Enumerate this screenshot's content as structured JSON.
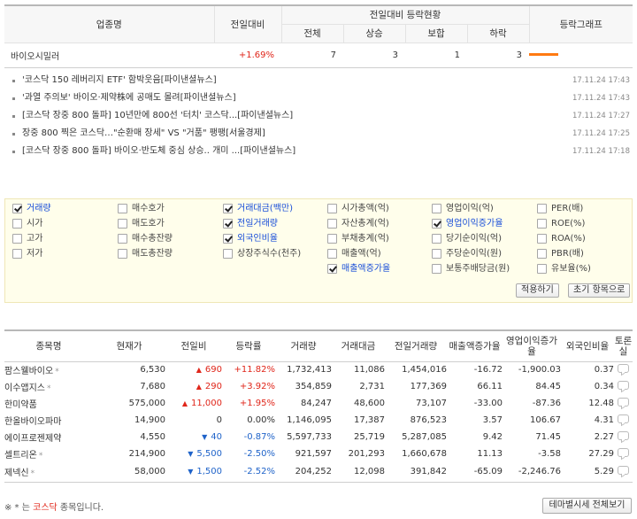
{
  "industry": {
    "headers": {
      "name": "업종명",
      "change": "전일대비",
      "group": "전일대비 등락현황",
      "total": "전체",
      "up": "상승",
      "flat": "보합",
      "down": "하락",
      "graph": "등락그래프"
    },
    "row": {
      "name": "바이오시밀러",
      "change": "+1.69%",
      "total": "7",
      "up": "3",
      "flat": "1",
      "down": "3",
      "graph_up_ratio": 0.43,
      "graph_color": "#ff7a12"
    }
  },
  "news": [
    {
      "title": "'코스닥 150 레버리지 ETF' 함박웃음[파이낸셜뉴스]",
      "date": "17.11.24 17:43"
    },
    {
      "title": "'과열 주의보' 바이오·제약株에 공매도 몰려[파이낸셜뉴스]",
      "date": "17.11.24 17:43"
    },
    {
      "title": "[코스닥 장중 800 돌파] 10년만에 800선 '터치' 코스닥...[파이낸셜뉴스]",
      "date": "17.11.24 17:27"
    },
    {
      "title": "장중 800 찍은 코스닥…\"순환매 장세\" VS \"거품\" 팽팽[서울경제]",
      "date": "17.11.24 17:25"
    },
    {
      "title": "[코스닥 장중 800 돌파] 바이오·반도체 중심 상승.. 개미 ...[파이낸셜뉴스]",
      "date": "17.11.24 17:18"
    }
  ],
  "filters": [
    [
      {
        "label": "거래량",
        "checked": true
      },
      {
        "label": "시가",
        "checked": false
      },
      {
        "label": "고가",
        "checked": false
      },
      {
        "label": "저가",
        "checked": false
      }
    ],
    [
      {
        "label": "매수호가",
        "checked": false
      },
      {
        "label": "매도호가",
        "checked": false
      },
      {
        "label": "매수총잔량",
        "checked": false
      },
      {
        "label": "매도총잔량",
        "checked": false
      }
    ],
    [
      {
        "label": "거래대금(백만)",
        "checked": true
      },
      {
        "label": "전일거래량",
        "checked": true
      },
      {
        "label": "외국인비율",
        "checked": true
      },
      {
        "label": "상장주식수(천주)",
        "checked": false
      }
    ],
    [
      {
        "label": "시가총액(억)",
        "checked": false
      },
      {
        "label": "자산총계(억)",
        "checked": false
      },
      {
        "label": "부채총계(억)",
        "checked": false
      },
      {
        "label": "매출액(억)",
        "checked": false
      },
      {
        "label": "매출액증가율",
        "checked": true
      }
    ],
    [
      {
        "label": "영업이익(억)",
        "checked": false
      },
      {
        "label": "영업이익증가율",
        "checked": true
      },
      {
        "label": "당기순이익(억)",
        "checked": false
      },
      {
        "label": "주당순이익(원)",
        "checked": false
      },
      {
        "label": "보통주배당금(원)",
        "checked": false
      }
    ],
    [
      {
        "label": "PER(배)",
        "checked": false
      },
      {
        "label": "ROE(%)",
        "checked": false
      },
      {
        "label": "ROA(%)",
        "checked": false
      },
      {
        "label": "PBR(배)",
        "checked": false
      },
      {
        "label": "유보율(%)",
        "checked": false
      }
    ]
  ],
  "filter_buttons": {
    "apply": "적용하기",
    "reset": "초기 항목으로"
  },
  "stocks": {
    "headers": [
      "종목명",
      "현재가",
      "전일비",
      "등락률",
      "거래량",
      "거래대금",
      "전일거래량",
      "매출액증가율",
      "영업이익증가율",
      "외국인비율",
      "토론실"
    ],
    "rows": [
      {
        "name": "팜스웰바이오",
        "star": "*",
        "price": "6,530",
        "dir": "up",
        "diff": "690",
        "rate": "+11.82%",
        "volume": "1,732,413",
        "amount": "11,086",
        "prev_volume": "1,454,016",
        "sales_growth": "-16.72",
        "op_growth": "-1,900.03",
        "foreign": "0.37"
      },
      {
        "name": "이수앱지스",
        "star": "*",
        "price": "7,680",
        "dir": "up",
        "diff": "290",
        "rate": "+3.92%",
        "volume": "354,859",
        "amount": "2,731",
        "prev_volume": "177,369",
        "sales_growth": "66.11",
        "op_growth": "84.45",
        "foreign": "0.34"
      },
      {
        "name": "한미약품",
        "star": "",
        "price": "575,000",
        "dir": "up",
        "diff": "11,000",
        "rate": "+1.95%",
        "volume": "84,247",
        "amount": "48,600",
        "prev_volume": "73,107",
        "sales_growth": "-33.00",
        "op_growth": "-87.36",
        "foreign": "12.48"
      },
      {
        "name": "한올바이오파마",
        "star": "",
        "price": "14,900",
        "dir": "flat",
        "diff": "0",
        "rate": "0.00%",
        "volume": "1,146,095",
        "amount": "17,387",
        "prev_volume": "876,523",
        "sales_growth": "3.57",
        "op_growth": "106.67",
        "foreign": "4.31"
      },
      {
        "name": "에이프로젠제약",
        "star": "",
        "price": "4,550",
        "dir": "down",
        "diff": "40",
        "rate": "-0.87%",
        "volume": "5,597,733",
        "amount": "25,719",
        "prev_volume": "5,287,085",
        "sales_growth": "9.42",
        "op_growth": "71.45",
        "foreign": "2.27"
      },
      {
        "name": "셀트리온",
        "star": "*",
        "price": "214,900",
        "dir": "down",
        "diff": "5,500",
        "rate": "-2.50%",
        "volume": "921,597",
        "amount": "201,293",
        "prev_volume": "1,660,678",
        "sales_growth": "11.13",
        "op_growth": "-3.58",
        "foreign": "27.29"
      },
      {
        "name": "제넥신",
        "star": "*",
        "price": "58,000",
        "dir": "down",
        "diff": "1,500",
        "rate": "-2.52%",
        "volume": "204,252",
        "amount": "12,098",
        "prev_volume": "391,842",
        "sales_growth": "-65.09",
        "op_growth": "-2,246.76",
        "foreign": "5.29"
      }
    ]
  },
  "footnote": {
    "prefix": "※ * 는 ",
    "market": "코스닥",
    "suffix": " 종목입니다."
  },
  "theme_button": "테마별시세 전체보기",
  "colors": {
    "up": "#e0261a",
    "down": "#1f63c9",
    "highlight_label": "#1a4fd8",
    "filter_bg": "#fffeeb"
  }
}
